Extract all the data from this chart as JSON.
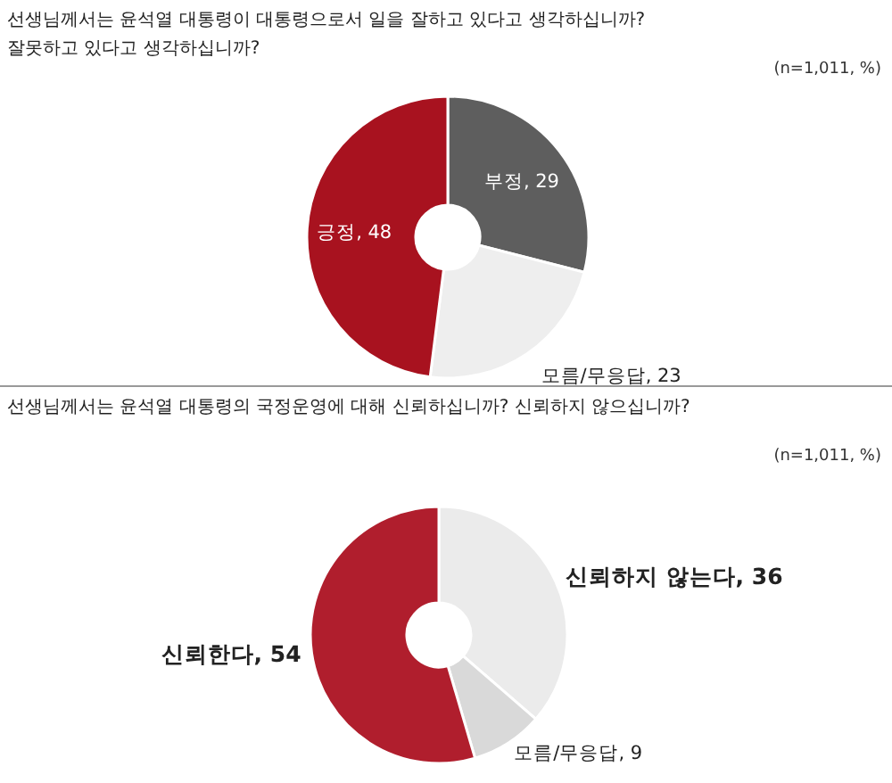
{
  "chart_data": [
    {
      "type": "donut",
      "title": "선생님께서는 윤석열 대통령이 대통령으로서 일을 잘하고 있다고 생각하십니까? 잘못하고 있다고 생각하십니까?",
      "subtitle": "(n=1,011, %)",
      "categories": [
        "부정",
        "모름/무응답",
        "긍정"
      ],
      "values": [
        29,
        23,
        48
      ],
      "value_labels": [
        ", 29",
        ", 23",
        ", 48"
      ],
      "colors": [
        "#5e5e5e",
        "#eeeeee",
        "#a8121f"
      ]
    },
    {
      "type": "donut",
      "title": "선생님께서는 윤석열 대통령의 국정운영에 대해 신뢰하십니까? 신뢰하지 않으십니까?",
      "subtitle": "(n=1,011, %)",
      "categories": [
        "신뢰하지 않는다",
        "모름/무응답",
        "신뢰한다"
      ],
      "values": [
        36,
        9,
        54
      ],
      "value_labels": [
        ", 36",
        ", 9",
        ", 54"
      ],
      "colors": [
        "#ebebeb",
        "#d9d9d9",
        "#b01e2d"
      ]
    }
  ]
}
